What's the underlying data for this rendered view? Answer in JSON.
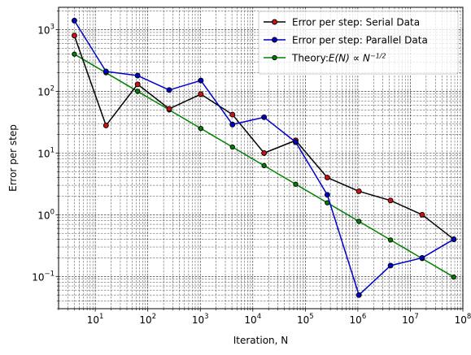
{
  "chart_data": {
    "type": "line",
    "xscale": "log",
    "yscale": "log",
    "xlabel": "Iteration, N",
    "ylabel": "Error per step",
    "xlim": [
      2,
      100000000
    ],
    "ylim": [
      0.03,
      2300
    ],
    "grid": "major and minor, dashed, black",
    "legend_position": "top-right",
    "x_ticks": [
      10,
      100,
      1000,
      10000,
      100000,
      1000000,
      10000000,
      100000000
    ],
    "x_tick_labels": [
      {
        "base": "10",
        "exp": "1"
      },
      {
        "base": "10",
        "exp": "2"
      },
      {
        "base": "10",
        "exp": "3"
      },
      {
        "base": "10",
        "exp": "4"
      },
      {
        "base": "10",
        "exp": "5"
      },
      {
        "base": "10",
        "exp": "6"
      },
      {
        "base": "10",
        "exp": "7"
      },
      {
        "base": "10",
        "exp": "8"
      }
    ],
    "y_ticks": [
      0.1,
      1,
      10,
      100,
      1000
    ],
    "y_tick_labels": [
      {
        "base": "10",
        "exp": "−1"
      },
      {
        "base": "10",
        "exp": "0"
      },
      {
        "base": "10",
        "exp": "1"
      },
      {
        "base": "10",
        "exp": "2"
      },
      {
        "base": "10",
        "exp": "3"
      }
    ],
    "series": [
      {
        "name": "Error per step: Serial Data",
        "line_color": "#000000",
        "marker_face": "#cc1111",
        "marker_edge": "#000000",
        "x": [
          4,
          16,
          64,
          256,
          1024,
          4096,
          16384,
          65536,
          262144,
          1048576,
          4194304,
          16777216,
          67108864
        ],
        "y": [
          800,
          28,
          130,
          52,
          90,
          42,
          10,
          16,
          4,
          2.4,
          1.7,
          1.0,
          0.4
        ]
      },
      {
        "name": "Error per step: Parallel Data",
        "line_color": "#0000cc",
        "marker_face": "#0000cc",
        "marker_edge": "#000000",
        "x": [
          4,
          16,
          64,
          256,
          1024,
          4096,
          16384,
          65536,
          262144,
          1048576,
          4194304,
          16777216,
          67108864
        ],
        "y": [
          1400,
          210,
          180,
          105,
          150,
          29,
          38,
          15,
          2.1,
          0.05,
          0.15,
          0.2,
          0.4
        ]
      },
      {
        "name_prefix": "Theory:",
        "name_math": "E(N) ∝ N",
        "name_sup": "−1/2",
        "line_color": "#008000",
        "marker_face": "#008000",
        "marker_edge": "#000000",
        "x": [
          4,
          16,
          64,
          256,
          1024,
          4096,
          16384,
          65536,
          262144,
          1048576,
          4194304,
          16777216,
          67108864
        ],
        "y": [
          400,
          200,
          100,
          50,
          25,
          12.5,
          6.25,
          3.125,
          1.5625,
          0.78,
          0.39,
          0.195,
          0.0977
        ]
      }
    ]
  }
}
